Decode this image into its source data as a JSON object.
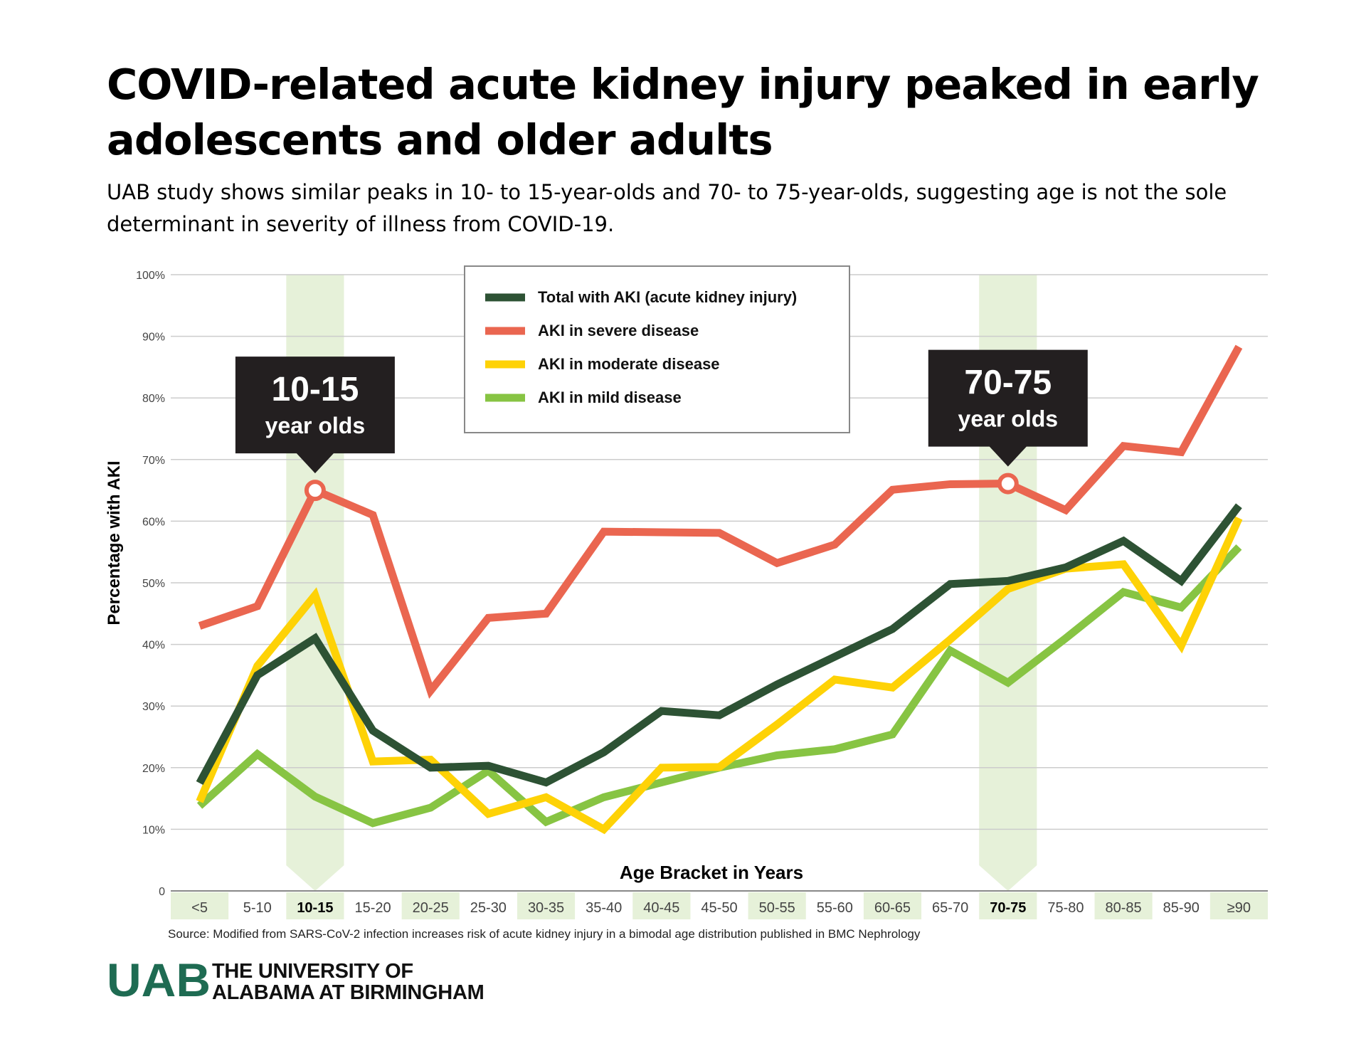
{
  "header": {
    "title": "COVID-related acute kidney injury peaked in early adolescents and older adults",
    "subtitle": "UAB study shows similar peaks in 10- to 15-year-olds and 70- to 75-year-olds, suggesting age is not the sole determinant in severity of illness from COVID-19."
  },
  "chart_data": {
    "type": "line",
    "title": "COVID-related acute kidney injury peaked in early adolescents and older adults",
    "xlabel": "Age Bracket in Years",
    "ylabel": "Percentage with AKI",
    "ylim": [
      0,
      100
    ],
    "yticks": [
      "0",
      "10%",
      "20%",
      "30%",
      "40%",
      "50%",
      "60%",
      "70%",
      "80%",
      "90%",
      "100%"
    ],
    "grid": true,
    "legend_position": "top-center",
    "categories": [
      "<5",
      "5-10",
      "10-15",
      "15-20",
      "20-25",
      "25-30",
      "30-35",
      "35-40",
      "40-45",
      "45-50",
      "50-55",
      "55-60",
      "60-65",
      "65-70",
      "70-75",
      "75-80",
      "80-85",
      "85-90",
      "≥90"
    ],
    "shaded_categories": [
      0,
      2,
      4,
      6,
      8,
      10,
      12,
      14,
      16,
      18
    ],
    "bold_categories": [
      2,
      14
    ],
    "highlight_bands": [
      2,
      14
    ],
    "series": [
      {
        "name": "Total with AKI (acute kidney injury)",
        "color": "#2d5234",
        "values": [
          17.5,
          35,
          41,
          26,
          20,
          20.3,
          17.6,
          22.5,
          29.2,
          28.5,
          33.5,
          38,
          42.5,
          49.8,
          50.3,
          52.5,
          56.8,
          50.3,
          62.5
        ]
      },
      {
        "name": "AKI in severe disease",
        "color": "#ea6650",
        "values": [
          43,
          46.2,
          65,
          61,
          32.5,
          44.3,
          45,
          58.3,
          58.2,
          58.1,
          53.2,
          56.2,
          65.1,
          66,
          66.1,
          61.8,
          72.2,
          71.2,
          88.3
        ]
      },
      {
        "name": "AKI in moderate disease",
        "color": "#fed206",
        "values": [
          14.5,
          36.5,
          48,
          21,
          21.3,
          12.5,
          15.2,
          10,
          20,
          20.1,
          27,
          34.3,
          33,
          40.8,
          49,
          52.3,
          53,
          39.8,
          60.5
        ]
      },
      {
        "name": "AKI in mild disease",
        "color": "#87c443",
        "values": [
          13.8,
          22.2,
          15.3,
          11,
          13.5,
          19.5,
          11.2,
          15.2,
          17.6,
          20,
          22,
          23,
          25.4,
          39,
          33.8,
          41,
          48.5,
          46,
          55.8
        ]
      }
    ],
    "annotations": [
      {
        "category": "10-15",
        "series": "AKI in severe disease",
        "value": 65,
        "label_line1": "10-15",
        "label_line2": "year olds"
      },
      {
        "category": "70-75",
        "series": "AKI in severe disease",
        "value": 66.1,
        "label_line1": "70-75",
        "label_line2": "year olds"
      }
    ],
    "source": "Source: Modified from SARS-CoV-2 infection increases risk of acute kidney injury in a bimodal age distribution published in BMC Nephrology"
  },
  "colors": {
    "band": "#e6f1d9",
    "grid": "#cccccc",
    "callout": "#231f20",
    "logo": "#1e6b52",
    "legend_border": "#888888"
  },
  "footer": {
    "logo_mark": "UAB",
    "logo_line1": "THE UNIVERSITY OF",
    "logo_line2": "ALABAMA AT BIRMINGHAM"
  }
}
